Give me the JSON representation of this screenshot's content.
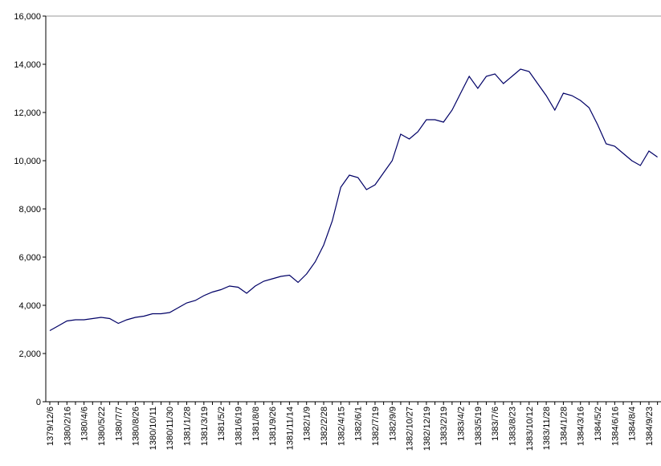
{
  "chart_data": {
    "type": "line",
    "categories": [
      "1379/12/6",
      null,
      "1380/2/16",
      null,
      "1380/4/6",
      null,
      "1380/5/22",
      null,
      "1380/7/7",
      null,
      "1380/8/26",
      null,
      "1380/10/11",
      null,
      "1380/11/30",
      null,
      "1381/1/28",
      null,
      "1381/3/19",
      null,
      "1381/5/2",
      null,
      "1381/6/19",
      null,
      "1381/8/8",
      null,
      "1381/9/26",
      null,
      "1381/11/14",
      null,
      "1382/1/9",
      null,
      "1382/2/28",
      null,
      "1382/4/15",
      null,
      "1382/6/1",
      null,
      "1382/7/19",
      null,
      "1382/9/9",
      null,
      "1382/10/27",
      null,
      "1382/12/19",
      null,
      "1383/2/19",
      null,
      "1383/4/2",
      null,
      "1383/5/19",
      null,
      "1383/7/6",
      null,
      "1383/8/23",
      null,
      "1383/10/12",
      null,
      "1383/11/28",
      null,
      "1384/1/28",
      null,
      "1384/3/16",
      null,
      "1384/5/2",
      null,
      "1384/6/16",
      null,
      "1384/8/4",
      null,
      "1384/9/23",
      null
    ],
    "series": [
      {
        "color": "#000066",
        "values": [
          2950,
          3150,
          3350,
          3400,
          3400,
          3450,
          3500,
          3450,
          3250,
          3400,
          3500,
          3550,
          3650,
          3650,
          3700,
          3900,
          4100,
          4200,
          4400,
          4550,
          4650,
          4800,
          4750,
          4500,
          4800,
          5000,
          5100,
          5200,
          5250,
          4950,
          5300,
          5800,
          6500,
          7500,
          8900,
          9400,
          9300,
          8800,
          9000,
          9500,
          10000,
          11100,
          10900,
          11200,
          11700,
          11700,
          11600,
          12100,
          12800,
          13500,
          13000,
          13500,
          13600,
          13200,
          13500,
          13800,
          13700,
          13200,
          12700,
          12100,
          12800,
          12700,
          12500,
          12200,
          11500,
          10700,
          10600,
          10300,
          10000,
          9800,
          10400,
          10150
        ]
      }
    ],
    "ylim": [
      0,
      16000
    ],
    "yticks": [
      0,
      {
        "value": 2000,
        "label": "2,000"
      },
      {
        "value": 4000,
        "label": "4,000"
      },
      {
        "value": 6000,
        "label": "6,000"
      },
      {
        "value": 8000,
        "label": "8,000"
      },
      {
        "value": 10000,
        "label": "10,000"
      },
      {
        "value": 12000,
        "label": "12,000"
      },
      {
        "value": 14000,
        "label": "14,000"
      },
      {
        "value": 16000,
        "label": "16,000"
      }
    ]
  }
}
